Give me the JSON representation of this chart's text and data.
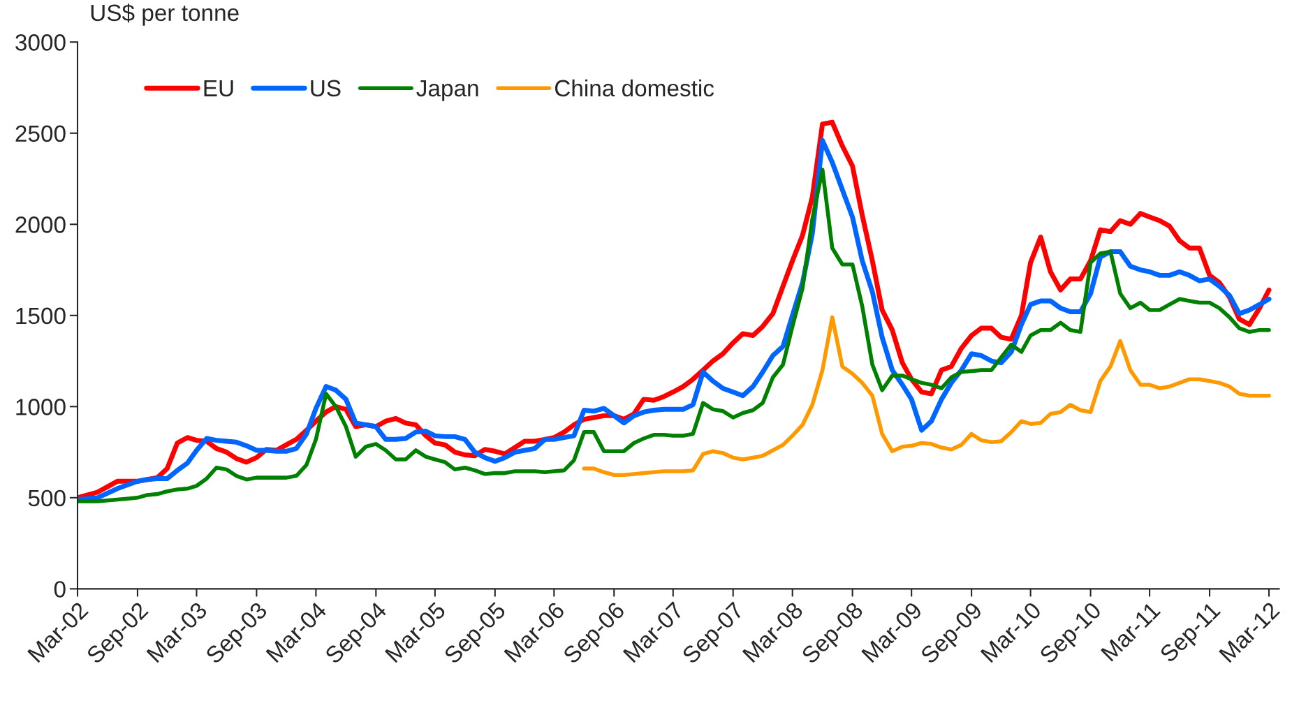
{
  "chart_data": {
    "type": "line",
    "ylabel": "US$ per tonne",
    "x": [
      "2002-03",
      "2002-04",
      "2002-05",
      "2002-06",
      "2002-07",
      "2002-08",
      "2002-09",
      "2002-10",
      "2002-11",
      "2002-12",
      "2003-01",
      "2003-02",
      "2003-03",
      "2003-04",
      "2003-05",
      "2003-06",
      "2003-07",
      "2003-08",
      "2003-09",
      "2003-10",
      "2003-11",
      "2003-12",
      "2004-01",
      "2004-02",
      "2004-03",
      "2004-04",
      "2004-05",
      "2004-06",
      "2004-07",
      "2004-08",
      "2004-09",
      "2004-10",
      "2004-11",
      "2004-12",
      "2005-01",
      "2005-02",
      "2005-03",
      "2005-04",
      "2005-05",
      "2005-06",
      "2005-07",
      "2005-08",
      "2005-09",
      "2005-10",
      "2005-11",
      "2005-12",
      "2006-01",
      "2006-02",
      "2006-03",
      "2006-04",
      "2006-05",
      "2006-06",
      "2006-07",
      "2006-08",
      "2006-09",
      "2006-10",
      "2006-11",
      "2006-12",
      "2007-01",
      "2007-02",
      "2007-03",
      "2007-04",
      "2007-05",
      "2007-06",
      "2007-07",
      "2007-08",
      "2007-09",
      "2007-10",
      "2007-11",
      "2007-12",
      "2008-01",
      "2008-02",
      "2008-03",
      "2008-04",
      "2008-05",
      "2008-06",
      "2008-07",
      "2008-08",
      "2008-09",
      "2008-10",
      "2008-11",
      "2008-12",
      "2009-01",
      "2009-02",
      "2009-03",
      "2009-04",
      "2009-05",
      "2009-06",
      "2009-07",
      "2009-08",
      "2009-09",
      "2009-10",
      "2009-11",
      "2009-12",
      "2010-01",
      "2010-02",
      "2010-03",
      "2010-04",
      "2010-05",
      "2010-06",
      "2010-07",
      "2010-08",
      "2010-09",
      "2010-10",
      "2010-11",
      "2010-12",
      "2011-01",
      "2011-02",
      "2011-03",
      "2011-04",
      "2011-05",
      "2011-06",
      "2011-07",
      "2011-08",
      "2011-09",
      "2011-10",
      "2011-11",
      "2011-12",
      "2012-01",
      "2012-02",
      "2012-03"
    ],
    "series": [
      {
        "name": "EU",
        "color": "#ff0000",
        "values": [
          500,
          515,
          530,
          560,
          590,
          590,
          590,
          600,
          610,
          660,
          800,
          830,
          815,
          810,
          770,
          750,
          715,
          695,
          720,
          765,
          760,
          790,
          820,
          870,
          920,
          970,
          1000,
          985,
          890,
          900,
          890,
          920,
          935,
          910,
          900,
          840,
          800,
          790,
          750,
          735,
          730,
          765,
          755,
          740,
          775,
          810,
          810,
          820,
          830,
          860,
          900,
          930,
          940,
          950,
          950,
          930,
          960,
          1040,
          1035,
          1055,
          1080,
          1110,
          1150,
          1200,
          1250,
          1290,
          1350,
          1400,
          1390,
          1440,
          1510,
          1660,
          1800,
          1940,
          2150,
          2550,
          2560,
          2430,
          2320,
          2050,
          1800,
          1530,
          1420,
          1240,
          1150,
          1080,
          1070,
          1200,
          1220,
          1320,
          1390,
          1430,
          1430,
          1380,
          1370,
          1500,
          1790,
          1930,
          1740,
          1640,
          1700,
          1700,
          1800,
          1970,
          1960,
          2020,
          2000,
          2060,
          2040,
          2020,
          1990,
          1910,
          1870,
          1870,
          1720,
          1680,
          1600,
          1480,
          1450,
          1540,
          1640
        ]
      },
      {
        "name": "US",
        "color": "#0066ff",
        "values": [
          490,
          495,
          500,
          525,
          550,
          570,
          590,
          600,
          605,
          605,
          650,
          690,
          760,
          825,
          815,
          810,
          805,
          785,
          760,
          760,
          755,
          755,
          770,
          850,
          990,
          1110,
          1090,
          1040,
          910,
          900,
          890,
          820,
          820,
          825,
          860,
          865,
          840,
          835,
          835,
          820,
          750,
          720,
          700,
          720,
          750,
          760,
          770,
          820,
          820,
          830,
          840,
          980,
          975,
          990,
          950,
          910,
          950,
          970,
          980,
          985,
          985,
          985,
          1010,
          1190,
          1140,
          1100,
          1080,
          1060,
          1110,
          1190,
          1280,
          1330,
          1500,
          1680,
          1950,
          2460,
          2340,
          2190,
          2040,
          1800,
          1630,
          1380,
          1200,
          1120,
          1040,
          870,
          920,
          1040,
          1130,
          1200,
          1290,
          1280,
          1250,
          1240,
          1300,
          1450,
          1560,
          1580,
          1580,
          1540,
          1520,
          1520,
          1620,
          1820,
          1850,
          1850,
          1770,
          1750,
          1740,
          1720,
          1720,
          1740,
          1720,
          1690,
          1700,
          1660,
          1610,
          1510,
          1530,
          1560,
          1590
        ]
      },
      {
        "name": "Japan",
        "color": "#008000",
        "values": [
          480,
          480,
          480,
          485,
          490,
          495,
          500,
          515,
          520,
          535,
          545,
          550,
          565,
          605,
          665,
          655,
          620,
          600,
          610,
          610,
          610,
          610,
          620,
          680,
          820,
          1070,
          1000,
          890,
          725,
          780,
          795,
          760,
          710,
          710,
          760,
          725,
          710,
          695,
          655,
          665,
          650,
          630,
          635,
          635,
          645,
          645,
          645,
          640,
          645,
          650,
          705,
          860,
          860,
          755,
          755,
          755,
          800,
          825,
          845,
          845,
          840,
          840,
          850,
          1020,
          985,
          975,
          940,
          965,
          980,
          1020,
          1160,
          1230,
          1440,
          1650,
          2030,
          2300,
          1870,
          1780,
          1780,
          1550,
          1230,
          1090,
          1170,
          1170,
          1150,
          1130,
          1120,
          1100,
          1160,
          1190,
          1195,
          1200,
          1200,
          1270,
          1340,
          1300,
          1390,
          1420,
          1420,
          1460,
          1420,
          1410,
          1790,
          1840,
          1850,
          1620,
          1540,
          1570,
          1530,
          1530,
          1560,
          1590,
          1580,
          1570,
          1570,
          1540,
          1490,
          1430,
          1410,
          1420,
          1420
        ]
      },
      {
        "name": "China domestic",
        "color": "#ff9900",
        "values": [
          null,
          null,
          null,
          null,
          null,
          null,
          null,
          null,
          null,
          null,
          null,
          null,
          null,
          null,
          null,
          null,
          null,
          null,
          null,
          null,
          null,
          null,
          null,
          null,
          null,
          null,
          null,
          null,
          null,
          null,
          null,
          null,
          null,
          null,
          null,
          null,
          null,
          null,
          null,
          null,
          null,
          null,
          null,
          null,
          null,
          null,
          null,
          null,
          null,
          null,
          null,
          660,
          660,
          640,
          625,
          625,
          630,
          635,
          640,
          645,
          645,
          645,
          650,
          740,
          755,
          745,
          720,
          710,
          720,
          730,
          760,
          790,
          840,
          900,
          1010,
          1200,
          1490,
          1220,
          1180,
          1130,
          1060,
          850,
          755,
          780,
          785,
          800,
          795,
          775,
          765,
          790,
          850,
          815,
          805,
          810,
          860,
          920,
          905,
          910,
          960,
          970,
          1010,
          980,
          970,
          1140,
          1220,
          1360,
          1200,
          1120,
          1120,
          1100,
          1110,
          1130,
          1150,
          1150,
          1140,
          1130,
          1110,
          1070,
          1060,
          1060,
          1060
        ]
      }
    ],
    "xlim": [
      "2002-03",
      "2012-04"
    ],
    "xticks": [
      {
        "value": "2002-03",
        "label": "Mar-02"
      },
      {
        "value": "2002-09",
        "label": "Sep-02"
      },
      {
        "value": "2003-03",
        "label": "Mar-03"
      },
      {
        "value": "2003-09",
        "label": "Sep-03"
      },
      {
        "value": "2004-03",
        "label": "Mar-04"
      },
      {
        "value": "2004-09",
        "label": "Sep-04"
      },
      {
        "value": "2005-03",
        "label": "Mar-05"
      },
      {
        "value": "2005-09",
        "label": "Sep-05"
      },
      {
        "value": "2006-03",
        "label": "Mar-06"
      },
      {
        "value": "2006-09",
        "label": "Sep-06"
      },
      {
        "value": "2007-03",
        "label": "Mar-07"
      },
      {
        "value": "2007-09",
        "label": "Sep-07"
      },
      {
        "value": "2008-03",
        "label": "Mar-08"
      },
      {
        "value": "2008-09",
        "label": "Sep-08"
      },
      {
        "value": "2009-03",
        "label": "Mar-09"
      },
      {
        "value": "2009-09",
        "label": "Sep-09"
      },
      {
        "value": "2010-03",
        "label": "Mar-10"
      },
      {
        "value": "2010-09",
        "label": "Sep-10"
      },
      {
        "value": "2011-03",
        "label": "Mar-11"
      },
      {
        "value": "2011-09",
        "label": "Sep-11"
      },
      {
        "value": "2012-03",
        "label": "Mar-12"
      }
    ],
    "ylim": [
      0,
      3000
    ],
    "yticks": [
      0,
      500,
      1000,
      1500,
      2000,
      2500,
      3000
    ],
    "grid": false,
    "legend": "top left",
    "marker": "none",
    "line_style": "solid"
  }
}
